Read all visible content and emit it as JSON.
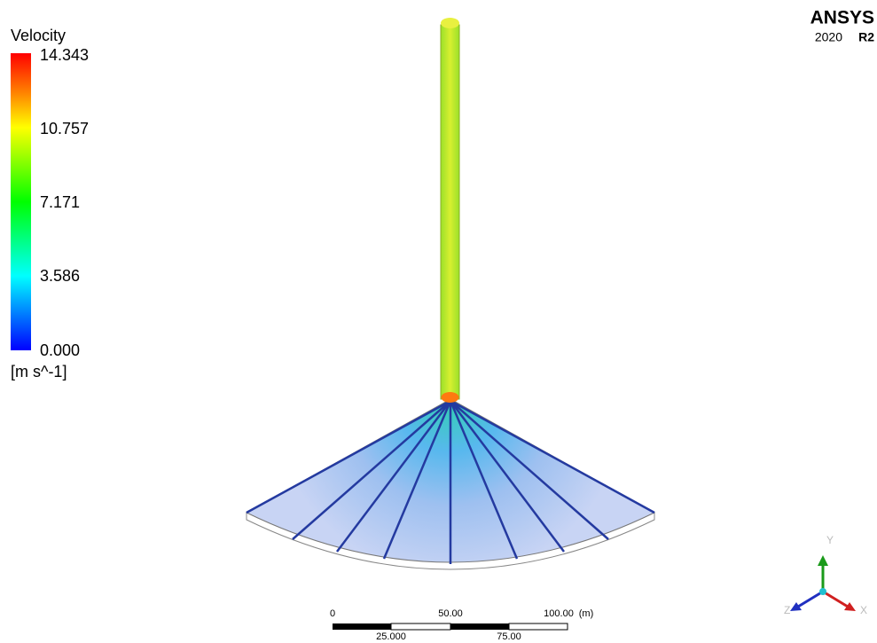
{
  "legend": {
    "title": "Velocity",
    "ticks": [
      "14.343",
      "10.757",
      "7.171",
      "3.586",
      "0.000"
    ],
    "unit": "[m s^-1]"
  },
  "logo": {
    "brand": "ANSYS",
    "version": "2020",
    "release": "R2"
  },
  "scale_bar": {
    "top_labels": [
      "0",
      "50.00",
      "100.00"
    ],
    "unit": "(m)",
    "bottom_labels": [
      "25.000",
      "75.00"
    ]
  },
  "triad": {
    "y": "Y",
    "z": "Z",
    "x": "X"
  }
}
